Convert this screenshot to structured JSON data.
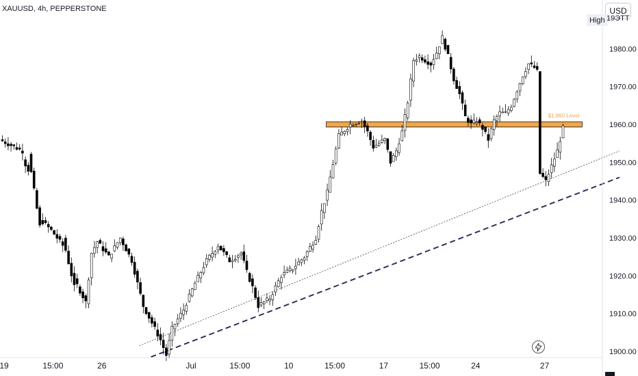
{
  "header": {
    "symbol": "XAUUSD, 4h, PEPPERSTONE",
    "currency": "USD",
    "high_label": "High",
    "high_value_partial": "19ЭТТ"
  },
  "colors": {
    "bull_body": "#ffffff",
    "bear_body": "#000000",
    "wick": "#000000",
    "level_fill": "#f0a64a",
    "level_border": "#131722",
    "level_text": "#f0a64a",
    "trend_dashed": "#3b2a5a",
    "trend_dotted": "#555555",
    "axis_text": "#131722"
  },
  "icons": {
    "alert": "lightning-icon"
  },
  "chart_data": {
    "type": "candlestick",
    "timeframe": "4h",
    "ylim": [
      1898,
      1990
    ],
    "y_ticks": [
      1900,
      1910,
      1920,
      1930,
      1940,
      1950,
      1960,
      1970,
      1980
    ],
    "y_tick_labels": [
      "1900.00",
      "1910.00",
      "1920.00",
      "1930.00",
      "1940.00",
      "1950.00",
      "1960.00",
      "1970.00",
      "1980.00"
    ],
    "x_tick_labels": [
      "19",
      "15:00",
      "26",
      "Jul",
      "15:00",
      "10",
      "15:00",
      "17",
      "15:00",
      "24",
      "27"
    ],
    "x_tick_bars": [
      0,
      17,
      34,
      65,
      82,
      99,
      115,
      132,
      148,
      164,
      188
    ],
    "horizontal_level": {
      "price": 1960,
      "label": "$1,960 Level",
      "band": [
        1959.3,
        1960.7
      ],
      "start_bar": 113,
      "end_bar": 202
    },
    "trendlines": [
      {
        "style": "dashed",
        "start_bar": 52,
        "start_price": 1898.5,
        "end_bar": 215,
        "end_price": 1946
      },
      {
        "style": "dotted",
        "start_bar": 48,
        "start_price": 1901.5,
        "end_bar": 215,
        "end_price": 1953
      }
    ],
    "ohlc_close_path": [
      [
        0,
        1956,
        1953
      ],
      [
        8,
        1951,
        1948
      ],
      [
        10,
        1952,
        1933
      ],
      [
        14,
        1935,
        1932
      ],
      [
        18,
        1932,
        1928
      ],
      [
        22,
        1930,
        1917
      ],
      [
        26,
        1919,
        1913
      ],
      [
        30,
        1913,
        1926
      ],
      [
        32,
        1926,
        1929
      ],
      [
        34,
        1929,
        1925
      ],
      [
        38,
        1925,
        1930
      ],
      [
        42,
        1930,
        1924
      ],
      [
        46,
        1924,
        1912
      ],
      [
        50,
        1912,
        1906
      ],
      [
        54,
        1906,
        1903
      ],
      [
        56,
        1903,
        1899
      ],
      [
        58,
        1899,
        1906
      ],
      [
        60,
        1906,
        1911
      ],
      [
        64,
        1911,
        1918
      ],
      [
        68,
        1918,
        1924
      ],
      [
        72,
        1924,
        1928
      ],
      [
        76,
        1928,
        1924
      ],
      [
        80,
        1924,
        1926
      ],
      [
        84,
        1926,
        1921
      ],
      [
        86,
        1921,
        1917
      ],
      [
        88,
        1917,
        1912
      ],
      [
        90,
        1912,
        1914
      ],
      [
        94,
        1914,
        1920
      ],
      [
        98,
        1920,
        1922
      ],
      [
        102,
        1922,
        1925
      ],
      [
        106,
        1925,
        1930
      ],
      [
        110,
        1930,
        1937
      ],
      [
        112,
        1937,
        1942
      ],
      [
        114,
        1942,
        1946
      ],
      [
        115,
        1946,
        1957
      ],
      [
        118,
        1957,
        1960
      ],
      [
        122,
        1960,
        1961
      ],
      [
        126,
        1961,
        1958
      ],
      [
        128,
        1958,
        1954
      ],
      [
        130,
        1954,
        1956
      ],
      [
        134,
        1956,
        1950
      ],
      [
        136,
        1950,
        1953
      ],
      [
        138,
        1953,
        1958
      ],
      [
        140,
        1958,
        1966
      ],
      [
        142,
        1966,
        1977
      ],
      [
        144,
        1977,
        1978
      ],
      [
        146,
        1978,
        1977
      ],
      [
        148,
        1977,
        1976
      ],
      [
        150,
        1976,
        1979
      ],
      [
        152,
        1979,
        1983
      ],
      [
        154,
        1983,
        1978
      ],
      [
        156,
        1978,
        1972
      ],
      [
        158,
        1972,
        1968
      ],
      [
        160,
        1968,
        1962
      ],
      [
        162,
        1962,
        1960
      ],
      [
        164,
        1960,
        1961
      ],
      [
        166,
        1961,
        1959
      ],
      [
        168,
        1959,
        1956
      ],
      [
        170,
        1956,
        1961
      ],
      [
        172,
        1961,
        1963
      ],
      [
        174,
        1963,
        1963
      ],
      [
        176,
        1963,
        1965
      ],
      [
        178,
        1965,
        1969
      ],
      [
        180,
        1969,
        1973
      ],
      [
        182,
        1973,
        1976
      ],
      [
        184,
        1976,
        1975
      ],
      [
        186,
        1975,
        1974
      ],
      [
        187,
        1974,
        1947
      ],
      [
        188,
        1947,
        1945
      ],
      [
        190,
        1945,
        1949
      ],
      [
        192,
        1949,
        1953
      ],
      [
        194,
        1953,
        1959
      ],
      [
        196,
        1959,
        1960
      ]
    ]
  }
}
